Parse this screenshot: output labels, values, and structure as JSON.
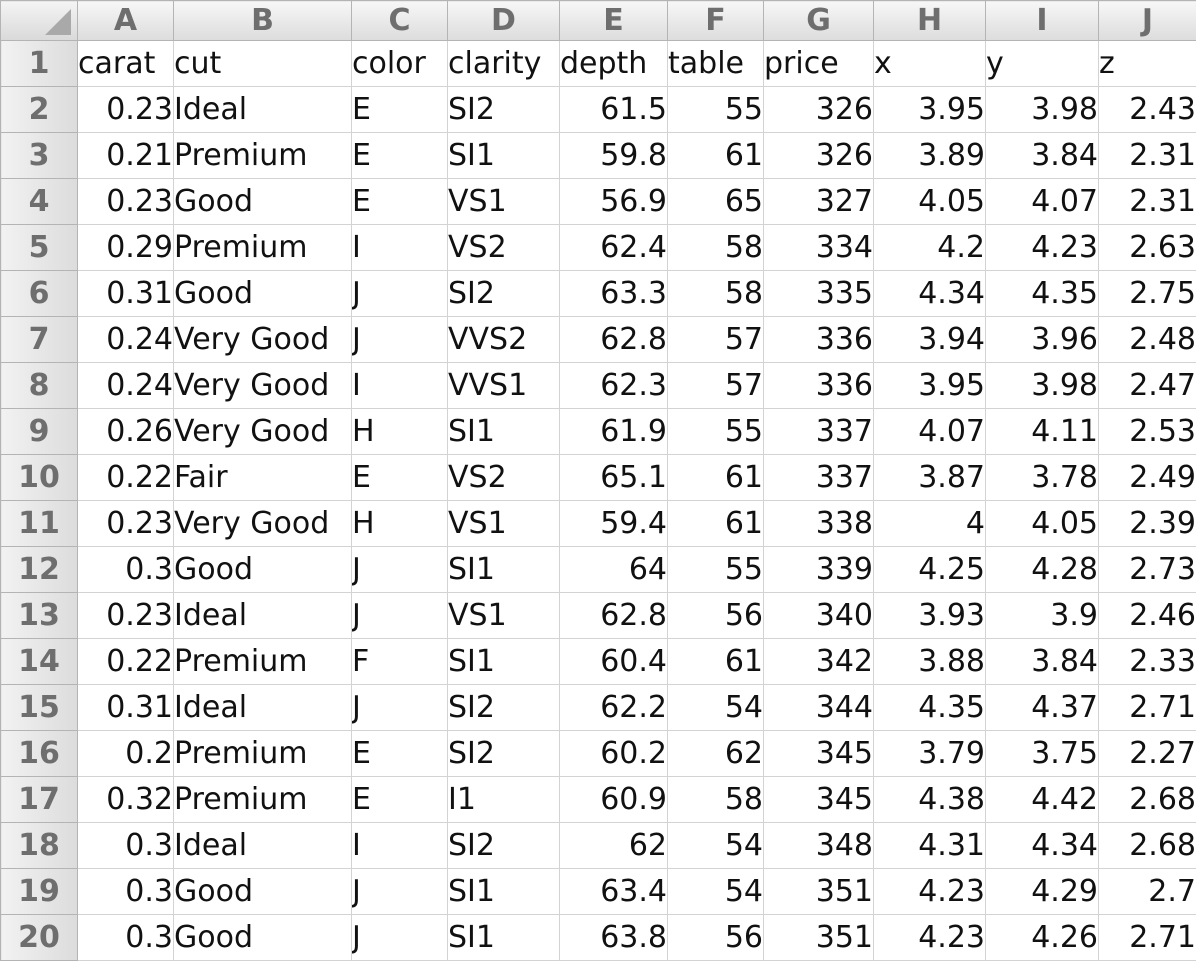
{
  "columns": [
    "A",
    "B",
    "C",
    "D",
    "E",
    "F",
    "G",
    "H",
    "I",
    "J"
  ],
  "rows": [
    {
      "num": "1",
      "cells": [
        "carat",
        "cut",
        "color",
        "clarity",
        "depth",
        "table",
        "price",
        "x",
        "y",
        "z"
      ]
    },
    {
      "num": "2",
      "cells": [
        "0.23",
        "Ideal",
        "E",
        "SI2",
        "61.5",
        "55",
        "326",
        "3.95",
        "3.98",
        "2.43"
      ]
    },
    {
      "num": "3",
      "cells": [
        "0.21",
        "Premium",
        "E",
        "SI1",
        "59.8",
        "61",
        "326",
        "3.89",
        "3.84",
        "2.31"
      ]
    },
    {
      "num": "4",
      "cells": [
        "0.23",
        "Good",
        "E",
        "VS1",
        "56.9",
        "65",
        "327",
        "4.05",
        "4.07",
        "2.31"
      ]
    },
    {
      "num": "5",
      "cells": [
        "0.29",
        "Premium",
        "I",
        "VS2",
        "62.4",
        "58",
        "334",
        "4.2",
        "4.23",
        "2.63"
      ]
    },
    {
      "num": "6",
      "cells": [
        "0.31",
        "Good",
        "J",
        "SI2",
        "63.3",
        "58",
        "335",
        "4.34",
        "4.35",
        "2.75"
      ]
    },
    {
      "num": "7",
      "cells": [
        "0.24",
        "Very Good",
        "J",
        "VVS2",
        "62.8",
        "57",
        "336",
        "3.94",
        "3.96",
        "2.48"
      ]
    },
    {
      "num": "8",
      "cells": [
        "0.24",
        "Very Good",
        "I",
        "VVS1",
        "62.3",
        "57",
        "336",
        "3.95",
        "3.98",
        "2.47"
      ]
    },
    {
      "num": "9",
      "cells": [
        "0.26",
        "Very Good",
        "H",
        "SI1",
        "61.9",
        "55",
        "337",
        "4.07",
        "4.11",
        "2.53"
      ]
    },
    {
      "num": "10",
      "cells": [
        "0.22",
        "Fair",
        "E",
        "VS2",
        "65.1",
        "61",
        "337",
        "3.87",
        "3.78",
        "2.49"
      ]
    },
    {
      "num": "11",
      "cells": [
        "0.23",
        "Very Good",
        "H",
        "VS1",
        "59.4",
        "61",
        "338",
        "4",
        "4.05",
        "2.39"
      ]
    },
    {
      "num": "12",
      "cells": [
        "0.3",
        "Good",
        "J",
        "SI1",
        "64",
        "55",
        "339",
        "4.25",
        "4.28",
        "2.73"
      ]
    },
    {
      "num": "13",
      "cells": [
        "0.23",
        "Ideal",
        "J",
        "VS1",
        "62.8",
        "56",
        "340",
        "3.93",
        "3.9",
        "2.46"
      ]
    },
    {
      "num": "14",
      "cells": [
        "0.22",
        "Premium",
        "F",
        "SI1",
        "60.4",
        "61",
        "342",
        "3.88",
        "3.84",
        "2.33"
      ]
    },
    {
      "num": "15",
      "cells": [
        "0.31",
        "Ideal",
        "J",
        "SI2",
        "62.2",
        "54",
        "344",
        "4.35",
        "4.37",
        "2.71"
      ]
    },
    {
      "num": "16",
      "cells": [
        "0.2",
        "Premium",
        "E",
        "SI2",
        "60.2",
        "62",
        "345",
        "3.79",
        "3.75",
        "2.27"
      ]
    },
    {
      "num": "17",
      "cells": [
        "0.32",
        "Premium",
        "E",
        "I1",
        "60.9",
        "58",
        "345",
        "4.38",
        "4.42",
        "2.68"
      ]
    },
    {
      "num": "18",
      "cells": [
        "0.3",
        "Ideal",
        "I",
        "SI2",
        "62",
        "54",
        "348",
        "4.31",
        "4.34",
        "2.68"
      ]
    },
    {
      "num": "19",
      "cells": [
        "0.3",
        "Good",
        "J",
        "SI1",
        "63.4",
        "54",
        "351",
        "4.23",
        "4.29",
        "2.7"
      ]
    },
    {
      "num": "20",
      "cells": [
        "0.3",
        "Good",
        "J",
        "SI1",
        "63.8",
        "56",
        "351",
        "4.23",
        "4.26",
        "2.71"
      ]
    }
  ]
}
